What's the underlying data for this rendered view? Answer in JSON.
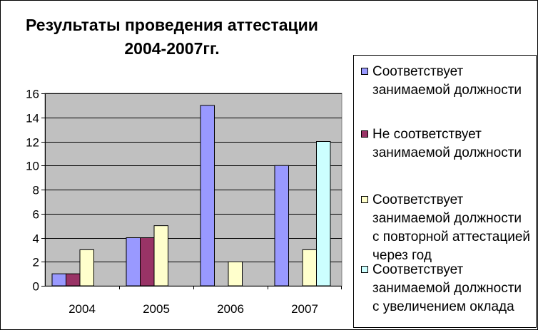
{
  "chart_data": {
    "type": "bar",
    "title_lines": [
      "Результаты проведения аттестации",
      "2004-2007гг."
    ],
    "categories": [
      "2004",
      "2005",
      "2006",
      "2007"
    ],
    "series": [
      {
        "name_lines": [
          "Соответствует",
          "занимаемой должности"
        ],
        "color": "#9999FF",
        "values": [
          1,
          4,
          15,
          10
        ]
      },
      {
        "name_lines": [
          "Не соответствует",
          "занимаемой должности"
        ],
        "color": "#993366",
        "values": [
          1,
          4,
          0,
          0
        ]
      },
      {
        "name_lines": [
          "Соответствует",
          "занимаемой должности",
          "с повторной аттестацией",
          "через год"
        ],
        "color": "#FFFFCC",
        "values": [
          3,
          5,
          2,
          3
        ]
      },
      {
        "name_lines": [
          "Соответствует",
          "занимаемой должности",
          "с увеличением оклада"
        ],
        "color": "#CCFFFF",
        "values": [
          0,
          0,
          0,
          12
        ]
      }
    ],
    "ylim": [
      0,
      16
    ],
    "y_ticks": [
      "0",
      "2",
      "4",
      "6",
      "8",
      "10",
      "12",
      "14",
      "16"
    ],
    "grid": true,
    "plot_background": "#C0C0C0",
    "legend_position": "right"
  }
}
